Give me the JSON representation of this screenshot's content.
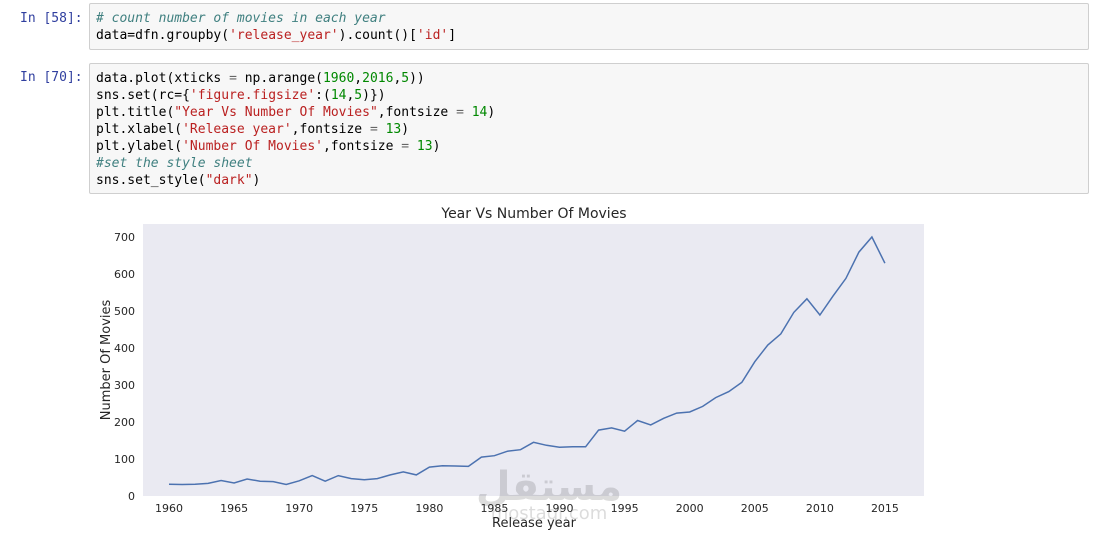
{
  "cells": [
    {
      "prompt": "In [58]:",
      "lines": [
        [
          {
            "t": "# count number of movies in each year",
            "c": "cm"
          }
        ],
        [
          {
            "t": "data=dfn.groupby(",
            "c": ""
          },
          {
            "t": "'release_year'",
            "c": "st"
          },
          {
            "t": ").count()[",
            "c": ""
          },
          {
            "t": "'id'",
            "c": "st"
          },
          {
            "t": "]",
            "c": ""
          }
        ]
      ]
    },
    {
      "prompt": "In [70]:",
      "lines": [
        [
          {
            "t": "data.plot(xticks ",
            "c": ""
          },
          {
            "t": "=",
            "c": "op"
          },
          {
            "t": " np.arange(",
            "c": ""
          },
          {
            "t": "1960",
            "c": "nm"
          },
          {
            "t": ",",
            "c": ""
          },
          {
            "t": "2016",
            "c": "nm"
          },
          {
            "t": ",",
            "c": ""
          },
          {
            "t": "5",
            "c": "nm"
          },
          {
            "t": "))",
            "c": ""
          }
        ],
        [
          {
            "t": "sns.set(rc={",
            "c": ""
          },
          {
            "t": "'figure.figsize'",
            "c": "st"
          },
          {
            "t": ":(",
            "c": ""
          },
          {
            "t": "14",
            "c": "nm"
          },
          {
            "t": ",",
            "c": ""
          },
          {
            "t": "5",
            "c": "nm"
          },
          {
            "t": ")})",
            "c": ""
          }
        ],
        [
          {
            "t": "plt.title(",
            "c": ""
          },
          {
            "t": "\"Year Vs Number Of Movies\"",
            "c": "st"
          },
          {
            "t": ",fontsize ",
            "c": ""
          },
          {
            "t": "=",
            "c": "op"
          },
          {
            "t": " ",
            "c": ""
          },
          {
            "t": "14",
            "c": "nm"
          },
          {
            "t": ")",
            "c": ""
          }
        ],
        [
          {
            "t": "plt.xlabel(",
            "c": ""
          },
          {
            "t": "'Release year'",
            "c": "st"
          },
          {
            "t": ",fontsize ",
            "c": ""
          },
          {
            "t": "=",
            "c": "op"
          },
          {
            "t": " ",
            "c": ""
          },
          {
            "t": "13",
            "c": "nm"
          },
          {
            "t": ")",
            "c": ""
          }
        ],
        [
          {
            "t": "plt.ylabel(",
            "c": ""
          },
          {
            "t": "'Number Of Movies'",
            "c": "st"
          },
          {
            "t": ",fontsize ",
            "c": ""
          },
          {
            "t": "=",
            "c": "op"
          },
          {
            "t": " ",
            "c": ""
          },
          {
            "t": "13",
            "c": "nm"
          },
          {
            "t": ")",
            "c": ""
          }
        ],
        [
          {
            "t": "#set the style sheet",
            "c": "cm"
          }
        ],
        [
          {
            "t": "sns.set_style(",
            "c": ""
          },
          {
            "t": "\"dark\"",
            "c": "st"
          },
          {
            "t": ")",
            "c": ""
          }
        ]
      ]
    }
  ],
  "chart_data": {
    "type": "line",
    "title": "Year Vs Number Of Movies",
    "xlabel": "Release year",
    "ylabel": "Number Of Movies",
    "xlim": [
      1958,
      2018
    ],
    "ylim": [
      0,
      735
    ],
    "xticks": [
      1960,
      1965,
      1970,
      1975,
      1980,
      1985,
      1990,
      1995,
      2000,
      2005,
      2010,
      2015
    ],
    "yticks": [
      0,
      100,
      200,
      300,
      400,
      500,
      600,
      700
    ],
    "line_color": "#4c72b0",
    "background": "#eaeaf2",
    "grid": false,
    "x": [
      1960,
      1961,
      1962,
      1963,
      1964,
      1965,
      1966,
      1967,
      1968,
      1969,
      1970,
      1971,
      1972,
      1973,
      1974,
      1975,
      1976,
      1977,
      1978,
      1979,
      1980,
      1981,
      1982,
      1983,
      1984,
      1985,
      1986,
      1987,
      1988,
      1989,
      1990,
      1991,
      1992,
      1993,
      1994,
      1995,
      1996,
      1997,
      1998,
      1999,
      2000,
      2001,
      2002,
      2003,
      2004,
      2005,
      2006,
      2007,
      2008,
      2009,
      2010,
      2011,
      2012,
      2013,
      2014,
      2015
    ],
    "values": [
      32,
      31,
      32,
      34,
      42,
      35,
      46,
      40,
      39,
      31,
      41,
      55,
      40,
      55,
      47,
      44,
      47,
      57,
      65,
      57,
      78,
      82,
      81,
      80,
      105,
      109,
      121,
      125,
      145,
      137,
      132,
      133,
      133,
      178,
      184,
      175,
      204,
      192,
      210,
      224,
      227,
      242,
      266,
      282,
      307,
      363,
      408,
      438,
      496,
      533,
      489,
      540,
      588,
      659,
      700,
      629
    ]
  },
  "watermark": {
    "brand": "مستقل",
    "site": "mostaql.com"
  }
}
